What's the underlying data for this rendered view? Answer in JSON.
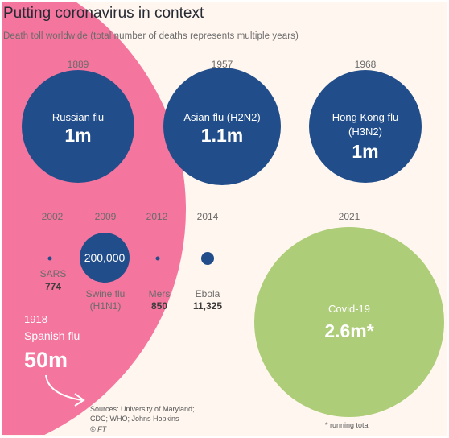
{
  "chart_data": {
    "type": "bubble",
    "title": "Putting coronavirus in context",
    "subtitle": "Death toll worldwide (total number of deaths represents multiple years)",
    "colors": {
      "spanish_flu": "#f4759e",
      "pandemic_bubble": "#214e8a",
      "covid": "#aecd78",
      "year_label": "#6b6b6b",
      "dark_text": "#3b3b3b"
    },
    "series": [
      {
        "year": "1918",
        "name": "Spanish flu",
        "value_label": "50m",
        "deaths": 50000000
      },
      {
        "year": "1889",
        "name": "Russian flu",
        "value_label": "1m",
        "deaths": 1000000
      },
      {
        "year": "1957",
        "name": "Asian flu (H2N2)",
        "value_label": "1.1m",
        "deaths": 1100000
      },
      {
        "year": "1968",
        "name": "Hong Kong flu",
        "name_line2": "(H3N2)",
        "value_label": "1m",
        "deaths": 1000000
      },
      {
        "year": "2002",
        "name": "SARS",
        "value_label": "774",
        "deaths": 774
      },
      {
        "year": "2009",
        "name": "Swine flu",
        "name_line2": "(H1N1)",
        "value_label": "200,000",
        "deaths": 200000
      },
      {
        "year": "2012",
        "name": "Mers",
        "value_label": "850",
        "deaths": 850
      },
      {
        "year": "2014",
        "name": "Ebola",
        "value_label": "11,325",
        "deaths": 11325
      },
      {
        "year": "2021",
        "name": "Covid-19",
        "value_label": "2.6m*",
        "deaths": 2600000
      }
    ],
    "sources": [
      "Sources: University of Maryland;",
      "CDC; WHO; Johns Hopkins",
      "© FT"
    ],
    "footnote": "* running total"
  }
}
